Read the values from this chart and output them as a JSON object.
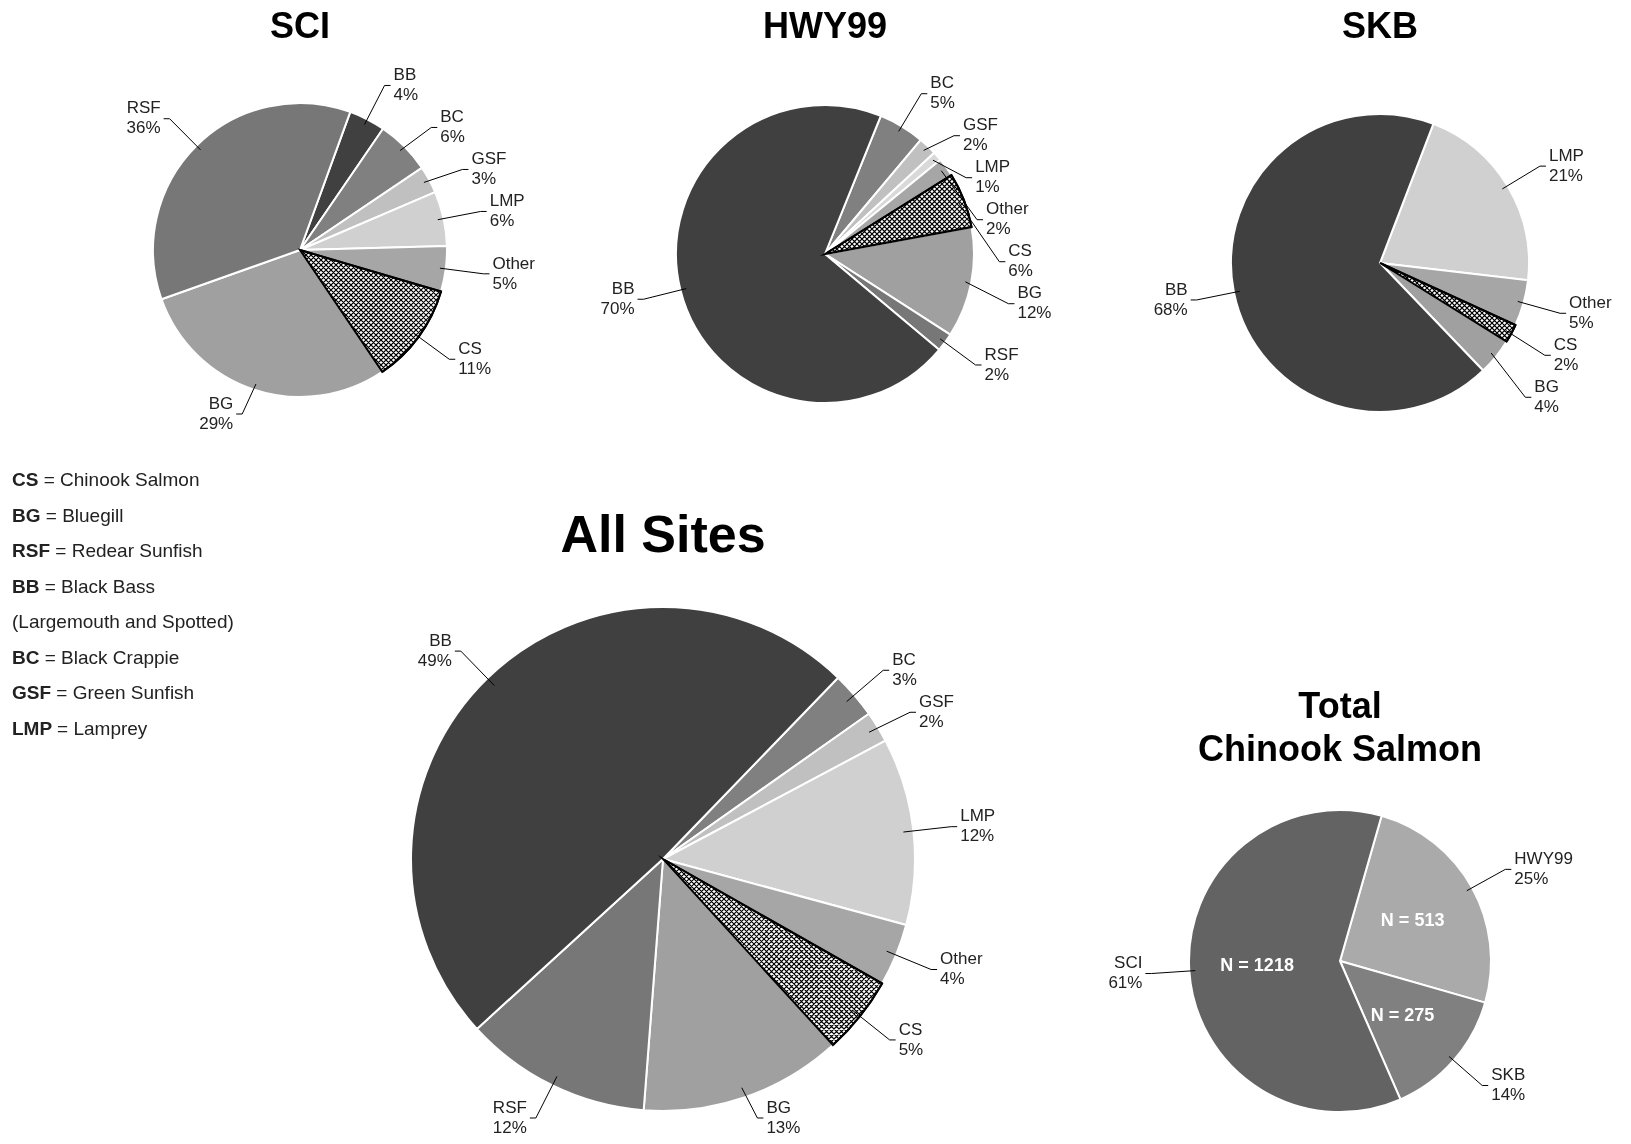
{
  "chart_data": [
    {
      "type": "pie",
      "title": "SCI",
      "categories": [
        "BB",
        "BC",
        "GSF",
        "LMP",
        "Other",
        "CS",
        "BG",
        "RSF"
      ],
      "values": [
        4,
        6,
        3,
        6,
        5,
        11,
        29,
        36
      ],
      "value_labels": [
        "4%",
        "6%",
        "3%",
        "6%",
        "5%",
        "11%",
        "29%",
        "36%"
      ],
      "colors": [
        "#404040",
        "#808080",
        "#c0c0c0",
        "#d0d0d0",
        "#a6a6a6",
        "#ffffff",
        "#a0a0a0",
        "#777777"
      ]
    },
    {
      "type": "pie",
      "title": "HWY99",
      "categories": [
        "BC",
        "GSF",
        "LMP",
        "Other",
        "CS",
        "BG",
        "RSF",
        "BB"
      ],
      "values": [
        5,
        2,
        1,
        2,
        6,
        12,
        2,
        70
      ],
      "value_labels": [
        "5%",
        "2%",
        "1%",
        "2%",
        "6%",
        "12%",
        "2%",
        "70%"
      ],
      "colors": [
        "#808080",
        "#c0c0c0",
        "#d9d9d9",
        "#a6a6a6",
        "#ffffff",
        "#a0a0a0",
        "#777777",
        "#404040"
      ]
    },
    {
      "type": "pie",
      "title": "SKB",
      "categories": [
        "LMP",
        "Other",
        "CS",
        "BG",
        "BB"
      ],
      "values": [
        21,
        5,
        2,
        4,
        68
      ],
      "value_labels": [
        "21%",
        "5%",
        "2%",
        "4%",
        "68%"
      ],
      "colors": [
        "#d0d0d0",
        "#a6a6a6",
        "#ffffff",
        "#a0a0a0",
        "#404040"
      ]
    },
    {
      "type": "other",
      "annotations": [
        "CS = Chinook Salmon",
        "BG = Bluegill",
        "RSF = Redear Sunfish",
        "BB = Black Bass",
        "(Largemouth and Spotted)",
        "BC = Black Crappie",
        "GSF = Green Sunfish",
        "LMP = Lamprey"
      ]
    },
    {
      "type": "pie",
      "title": "All Sites",
      "categories": [
        "BC",
        "GSF",
        "LMP",
        "Other",
        "CS",
        "BG",
        "RSF",
        "BB"
      ],
      "values": [
        3,
        2,
        12,
        4,
        5,
        13,
        12,
        49
      ],
      "value_labels": [
        "3%",
        "2%",
        "12%",
        "4%",
        "5%",
        "13%",
        "12%",
        "49%"
      ],
      "colors": [
        "#808080",
        "#c0c0c0",
        "#d0d0d0",
        "#a6a6a6",
        "#ffffff",
        "#a0a0a0",
        "#777777",
        "#404040"
      ]
    },
    {
      "type": "pie",
      "title": "Total\nChinook Salmon",
      "categories": [
        "HWY99",
        "SKB",
        "SCI"
      ],
      "values": [
        25,
        14,
        61
      ],
      "value_labels": [
        "25%",
        "14%",
        "61%"
      ],
      "colors": [
        "#aaaaaa",
        "#808080",
        "#636363"
      ],
      "annotations": [
        {
          "text": "N = 513",
          "x": "HWY99"
        },
        {
          "text": "N = 275",
          "x": "SKB"
        },
        {
          "text": "N = 1218",
          "x": "SCI"
        }
      ]
    }
  ]
}
